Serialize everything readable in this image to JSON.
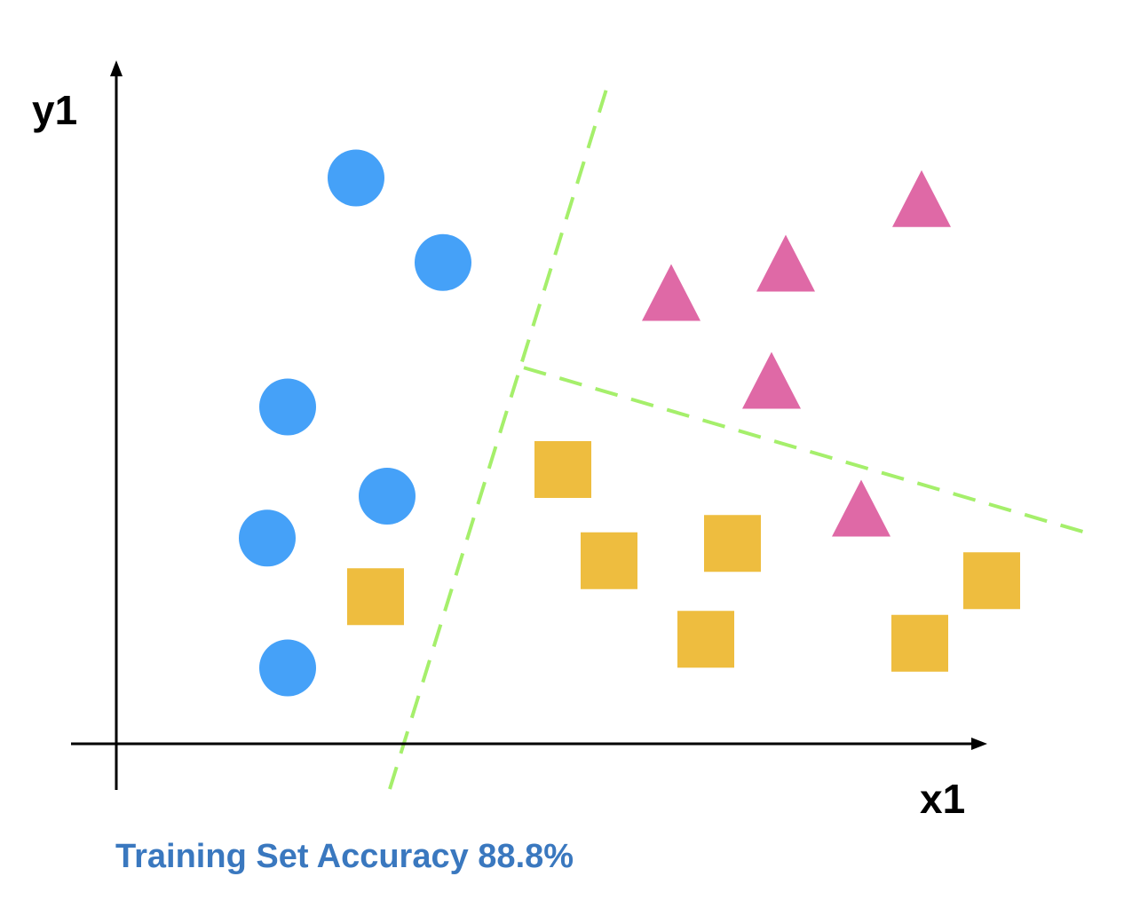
{
  "chart_data": {
    "type": "scatter",
    "title": "",
    "xlabel": "x1",
    "ylabel": "y1",
    "xlim": [
      0,
      100
    ],
    "ylim": [
      0,
      100
    ],
    "grid": false,
    "series": [
      {
        "name": "circle",
        "marker": "circle",
        "color": "#45a1f8",
        "points": [
          {
            "x": 27,
            "y": 85
          },
          {
            "x": 36.8,
            "y": 72.3
          },
          {
            "x": 19.3,
            "y": 50.6
          },
          {
            "x": 30.5,
            "y": 37.2
          },
          {
            "x": 17,
            "y": 30.9
          },
          {
            "x": 19.3,
            "y": 11.4
          }
        ]
      },
      {
        "name": "triangle",
        "marker": "triangle",
        "color": "#df69a6",
        "points": [
          {
            "x": 90.7,
            "y": 81.9
          },
          {
            "x": 75.4,
            "y": 72.2
          },
          {
            "x": 62.5,
            "y": 67.8
          },
          {
            "x": 73.8,
            "y": 54.6
          },
          {
            "x": 83.9,
            "y": 35.4
          }
        ]
      },
      {
        "name": "square",
        "marker": "square",
        "color": "#eebd3f",
        "points": [
          {
            "x": 50.3,
            "y": 41.2
          },
          {
            "x": 55.5,
            "y": 27.5
          },
          {
            "x": 69.4,
            "y": 30.1
          },
          {
            "x": 29.2,
            "y": 22.1
          },
          {
            "x": 66.4,
            "y": 15.7
          },
          {
            "x": 98.6,
            "y": 24.5
          },
          {
            "x": 90.5,
            "y": 15.1
          }
        ]
      }
    ],
    "boundaries": [
      {
        "name": "boundary-1",
        "style": "dashed",
        "color": "#a5ef6b",
        "points": [
          {
            "x": 30.8,
            "y": -6.8
          },
          {
            "x": 55.4,
            "y": 99.2
          }
        ]
      },
      {
        "name": "boundary-2",
        "style": "dashed",
        "color": "#a5ef6b",
        "points": [
          {
            "x": 45.9,
            "y": 56.5
          },
          {
            "x": 110.3,
            "y": 31.3
          }
        ]
      }
    ]
  },
  "annotations": {
    "accuracy_text": "Training Set Accuracy 88.8%"
  }
}
